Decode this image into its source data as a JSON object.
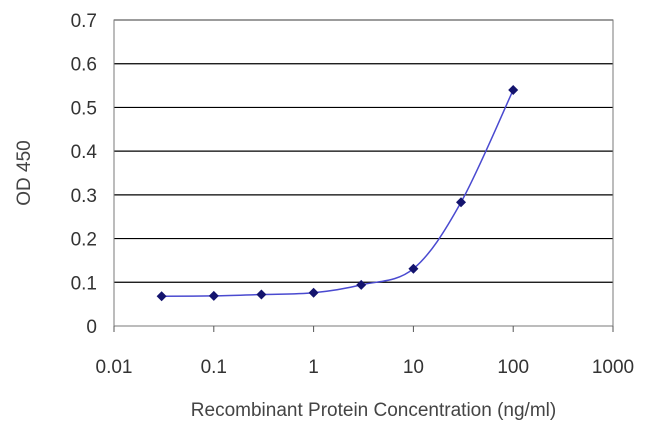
{
  "chart_data": {
    "type": "line",
    "title": "",
    "xlabel": "Recombinant Protein Concentration (ng/ml)",
    "ylabel": "OD 450",
    "x_scale": "log",
    "xlim": [
      0.01,
      1000
    ],
    "ylim": [
      0,
      0.7
    ],
    "x_ticks": [
      "0.01",
      "0.1",
      "1",
      "10",
      "100",
      "1000"
    ],
    "y_ticks": [
      "0",
      "0.1",
      "0.2",
      "0.3",
      "0.4",
      "0.5",
      "0.6",
      "0.7"
    ],
    "grid": "horizontal",
    "legend": "none",
    "series": [
      {
        "x": [
          0.03,
          0.1,
          0.3,
          1,
          3,
          10,
          30,
          100
        ],
        "y": [
          0.068,
          0.069,
          0.072,
          0.076,
          0.094,
          0.131,
          0.283,
          0.54
        ]
      }
    ],
    "colors": {
      "line": "#4a4ad0",
      "marker": "#14146e",
      "grid": "#000000"
    }
  }
}
